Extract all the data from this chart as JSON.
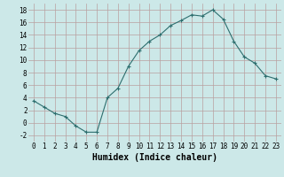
{
  "x": [
    0,
    1,
    2,
    3,
    4,
    5,
    6,
    7,
    8,
    9,
    10,
    11,
    12,
    13,
    14,
    15,
    16,
    17,
    18,
    19,
    20,
    21,
    22,
    23
  ],
  "y": [
    3.5,
    2.5,
    1.5,
    1.0,
    -0.5,
    -1.5,
    -1.5,
    4.0,
    5.5,
    9.0,
    11.5,
    13.0,
    14.0,
    15.5,
    16.3,
    17.2,
    17.0,
    18.0,
    16.5,
    13.0,
    10.5,
    9.5,
    7.5,
    7.0
  ],
  "line_color": "#2d6e6e",
  "marker": "+",
  "marker_size": 3,
  "bg_color": "#cce8e8",
  "grid_color": "#b8a0a0",
  "xlabel": "Humidex (Indice chaleur)",
  "ylim": [
    -3,
    19
  ],
  "xlim": [
    -0.5,
    23.5
  ],
  "yticks": [
    -2,
    0,
    2,
    4,
    6,
    8,
    10,
    12,
    14,
    16,
    18
  ],
  "xticks": [
    0,
    1,
    2,
    3,
    4,
    5,
    6,
    7,
    8,
    9,
    10,
    11,
    12,
    13,
    14,
    15,
    16,
    17,
    18,
    19,
    20,
    21,
    22,
    23
  ],
  "tick_fontsize": 5.5,
  "label_fontsize": 7,
  "linewidth": 0.8,
  "markeredgewidth": 0.8
}
